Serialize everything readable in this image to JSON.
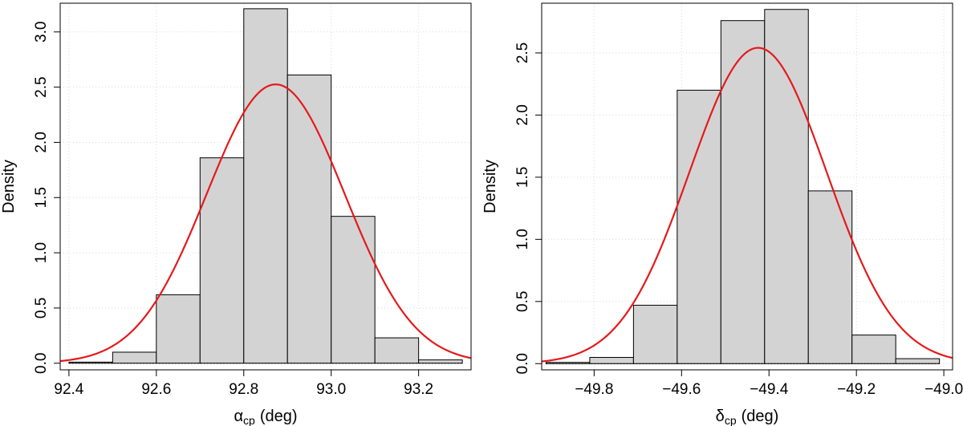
{
  "chart_data": [
    {
      "type": "bar",
      "subtype": "histogram",
      "xlabel": {
        "symbol": "α",
        "subscript": "cp",
        "unit": "(deg)"
      },
      "ylabel": "Density",
      "xlim": [
        92.38,
        93.32
      ],
      "ylim": [
        -0.06,
        3.26
      ],
      "xticks": [
        92.4,
        92.6,
        92.8,
        93.0,
        93.2
      ],
      "xtick_labels": [
        "92.4",
        "92.6",
        "92.8",
        "93.0",
        "93.2"
      ],
      "yticks": [
        0.0,
        0.5,
        1.0,
        1.5,
        2.0,
        2.5,
        3.0
      ],
      "ytick_labels": [
        "0.0",
        "0.5",
        "1.0",
        "1.5",
        "2.0",
        "2.5",
        "3.0"
      ],
      "grid": true,
      "bar_fill": "#d3d3d3",
      "bins": [
        {
          "from": 92.4,
          "to": 92.5,
          "density": 0.01
        },
        {
          "from": 92.5,
          "to": 92.6,
          "density": 0.1
        },
        {
          "from": 92.6,
          "to": 92.7,
          "density": 0.62
        },
        {
          "from": 92.7,
          "to": 92.8,
          "density": 1.86
        },
        {
          "from": 92.8,
          "to": 92.9,
          "density": 3.21
        },
        {
          "from": 92.9,
          "to": 93.0,
          "density": 2.61
        },
        {
          "from": 93.0,
          "to": 93.1,
          "density": 1.33
        },
        {
          "from": 93.1,
          "to": 93.2,
          "density": 0.23
        },
        {
          "from": 93.2,
          "to": 93.3,
          "density": 0.03
        }
      ],
      "curve": {
        "kind": "normal density",
        "color": "#e41a1c",
        "mean": 92.873,
        "sd": 0.158
      }
    },
    {
      "type": "bar",
      "subtype": "histogram",
      "xlabel": {
        "symbol": "δ",
        "subscript": "cp",
        "unit": "(deg)"
      },
      "ylabel": "Density",
      "xlim": [
        -49.92,
        -48.98
      ],
      "ylim": [
        -0.05,
        2.9
      ],
      "xticks": [
        -49.8,
        -49.6,
        -49.4,
        -49.2,
        -49.0
      ],
      "xtick_labels": [
        "−49.8",
        "−49.6",
        "−49.4",
        "−49.2",
        "−49.0"
      ],
      "yticks": [
        0.0,
        0.5,
        1.0,
        1.5,
        2.0,
        2.5
      ],
      "ytick_labels": [
        "0.0",
        "0.5",
        "1.0",
        "1.5",
        "2.0",
        "2.5"
      ],
      "grid": true,
      "bar_fill": "#d3d3d3",
      "bins": [
        {
          "from": -49.91,
          "to": -49.81,
          "density": 0.01
        },
        {
          "from": -49.81,
          "to": -49.71,
          "density": 0.05
        },
        {
          "from": -49.71,
          "to": -49.61,
          "density": 0.47
        },
        {
          "from": -49.61,
          "to": -49.51,
          "density": 2.2
        },
        {
          "from": -49.51,
          "to": -49.41,
          "density": 2.76
        },
        {
          "from": -49.41,
          "to": -49.31,
          "density": 2.85
        },
        {
          "from": -49.31,
          "to": -49.21,
          "density": 1.39
        },
        {
          "from": -49.21,
          "to": -49.11,
          "density": 0.23
        },
        {
          "from": -49.11,
          "to": -49.01,
          "density": 0.04
        }
      ],
      "curve": {
        "kind": "normal density",
        "color": "#e41a1c",
        "mean": -49.425,
        "sd": 0.157
      }
    }
  ]
}
